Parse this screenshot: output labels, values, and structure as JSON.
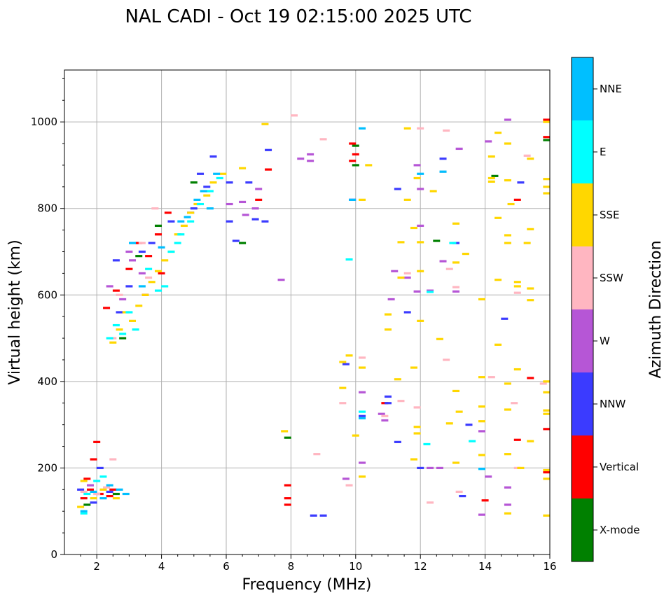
{
  "chart_data": {
    "type": "scatter",
    "title": "NAL CADI - Oct 19 02:15:00 2025 UTC",
    "xlabel": "Frequency (MHz)",
    "ylabel": "Virtual height (km)",
    "xlim": [
      1,
      16
    ],
    "ylim": [
      0,
      1120
    ],
    "xticks": [
      2,
      4,
      6,
      8,
      10,
      12,
      14,
      16
    ],
    "yticks": [
      0,
      200,
      400,
      600,
      800,
      1000
    ],
    "grid": true,
    "colorbar": {
      "label": "Azimuth Direction",
      "categories": [
        {
          "name": "X-mode",
          "color": "#008000"
        },
        {
          "name": "Vertical",
          "color": "#ff0000"
        },
        {
          "name": "NNW",
          "color": "#3b3bff"
        },
        {
          "name": "W",
          "color": "#b656d6"
        },
        {
          "name": "SSW",
          "color": "#ffb6c1"
        },
        {
          "name": "SSE",
          "color": "#ffd700"
        },
        {
          "name": "E",
          "color": "#00ffff"
        },
        {
          "name": "NNE",
          "color": "#00bfff"
        }
      ]
    },
    "series": [
      {
        "name": "X-mode",
        "points": [
          [
            1.7,
            115
          ],
          [
            2.6,
            140
          ],
          [
            3.3,
            690
          ],
          [
            3.9,
            760
          ],
          [
            6.5,
            720
          ],
          [
            7.9,
            270
          ],
          [
            10.0,
            900
          ],
          [
            10.0,
            945
          ],
          [
            12.5,
            725
          ],
          [
            15.9,
            958
          ],
          [
            2.8,
            500
          ],
          [
            5.0,
            860
          ],
          [
            14.3,
            875
          ]
        ]
      },
      {
        "name": "Vertical",
        "points": [
          [
            1.6,
            130
          ],
          [
            1.8,
            150
          ],
          [
            2.1,
            140
          ],
          [
            2.4,
            135
          ],
          [
            2.0,
            260
          ],
          [
            1.7,
            175
          ],
          [
            2.3,
            570
          ],
          [
            2.6,
            610
          ],
          [
            3.0,
            660
          ],
          [
            3.3,
            720
          ],
          [
            3.6,
            690
          ],
          [
            3.9,
            740
          ],
          [
            4.2,
            790
          ],
          [
            7.0,
            820
          ],
          [
            7.3,
            890
          ],
          [
            7.9,
            160
          ],
          [
            7.9,
            130
          ],
          [
            7.9,
            115
          ],
          [
            9.9,
            950
          ],
          [
            9.9,
            910
          ],
          [
            10.0,
            925
          ],
          [
            14.0,
            125
          ],
          [
            15.0,
            265
          ],
          [
            15.0,
            820
          ],
          [
            15.4,
            408
          ],
          [
            15.9,
            290
          ],
          [
            15.9,
            190
          ],
          [
            15.9,
            965
          ],
          [
            15.9,
            1005
          ],
          [
            10.9,
            350
          ],
          [
            2.5,
            150
          ],
          [
            1.9,
            220
          ],
          [
            3.5,
            600
          ],
          [
            4.0,
            650
          ]
        ]
      },
      {
        "name": "NNW",
        "points": [
          [
            1.5,
            150
          ],
          [
            1.9,
            120
          ],
          [
            2.4,
            145
          ],
          [
            2.7,
            560
          ],
          [
            3.0,
            620
          ],
          [
            3.4,
            700
          ],
          [
            3.7,
            720
          ],
          [
            4.3,
            770
          ],
          [
            5.0,
            800
          ],
          [
            5.4,
            850
          ],
          [
            5.6,
            920
          ],
          [
            6.1,
            860
          ],
          [
            6.1,
            770
          ],
          [
            6.3,
            725
          ],
          [
            6.7,
            860
          ],
          [
            6.9,
            775
          ],
          [
            7.2,
            770
          ],
          [
            7.3,
            935
          ],
          [
            8.7,
            90
          ],
          [
            9.0,
            90
          ],
          [
            9.7,
            440
          ],
          [
            9.9,
            820
          ],
          [
            10.2,
            320
          ],
          [
            11.0,
            365
          ],
          [
            11.0,
            350
          ],
          [
            11.3,
            260
          ],
          [
            11.3,
            845
          ],
          [
            11.6,
            560
          ],
          [
            12.0,
            200
          ],
          [
            12.7,
            915
          ],
          [
            13.1,
            720
          ],
          [
            13.3,
            135
          ],
          [
            13.5,
            300
          ],
          [
            14.6,
            545
          ],
          [
            15.1,
            860
          ],
          [
            2.1,
            200
          ],
          [
            2.6,
            680
          ],
          [
            4.9,
            790
          ],
          [
            5.2,
            880
          ]
        ]
      },
      {
        "name": "W",
        "points": [
          [
            1.8,
            160
          ],
          [
            2.8,
            590
          ],
          [
            3.1,
            680
          ],
          [
            3.4,
            650
          ],
          [
            6.1,
            810
          ],
          [
            6.5,
            815
          ],
          [
            6.6,
            785
          ],
          [
            6.9,
            800
          ],
          [
            7.0,
            845
          ],
          [
            8.3,
            915
          ],
          [
            8.6,
            925
          ],
          [
            8.6,
            910
          ],
          [
            10.2,
            375
          ],
          [
            10.2,
            212
          ],
          [
            10.8,
            325
          ],
          [
            10.9,
            310
          ],
          [
            11.1,
            590
          ],
          [
            11.2,
            655
          ],
          [
            11.6,
            640
          ],
          [
            11.9,
            900
          ],
          [
            11.9,
            608
          ],
          [
            12.0,
            760
          ],
          [
            12.0,
            845
          ],
          [
            12.3,
            200
          ],
          [
            12.3,
            610
          ],
          [
            12.6,
            200
          ],
          [
            12.7,
            678
          ],
          [
            13.1,
            608
          ],
          [
            13.2,
            938
          ],
          [
            13.9,
            285
          ],
          [
            13.9,
            92
          ],
          [
            14.1,
            180
          ],
          [
            14.1,
            955
          ],
          [
            14.7,
            155
          ],
          [
            14.7,
            115
          ],
          [
            14.7,
            1005
          ],
          [
            2.4,
            620
          ],
          [
            3.0,
            700
          ],
          [
            7.7,
            635
          ],
          [
            9.7,
            175
          ]
        ]
      },
      {
        "name": "SSW",
        "points": [
          [
            1.6,
            145
          ],
          [
            2.0,
            140
          ],
          [
            2.3,
            155
          ],
          [
            2.5,
            500
          ],
          [
            2.7,
            600
          ],
          [
            3.4,
            720
          ],
          [
            3.8,
            800
          ],
          [
            8.1,
            1015
          ],
          [
            8.8,
            232
          ],
          [
            9.6,
            350
          ],
          [
            9.8,
            160
          ],
          [
            10.2,
            455
          ],
          [
            10.9,
            320
          ],
          [
            11.4,
            355
          ],
          [
            11.6,
            650
          ],
          [
            11.9,
            340
          ],
          [
            12.0,
            985
          ],
          [
            12.3,
            120
          ],
          [
            12.7,
            885
          ],
          [
            12.8,
            980
          ],
          [
            12.8,
            450
          ],
          [
            12.9,
            660
          ],
          [
            13.1,
            618
          ],
          [
            13.2,
            145
          ],
          [
            14.2,
            410
          ],
          [
            14.9,
            350
          ],
          [
            15.0,
            200
          ],
          [
            15.0,
            605
          ],
          [
            15.3,
            922
          ],
          [
            15.8,
            395
          ],
          [
            2.5,
            220
          ],
          [
            3.6,
            640
          ],
          [
            9.0,
            960
          ]
        ]
      },
      {
        "name": "SSE",
        "points": [
          [
            1.5,
            110
          ],
          [
            1.6,
            170
          ],
          [
            1.9,
            130
          ],
          [
            2.2,
            150
          ],
          [
            2.6,
            130
          ],
          [
            2.5,
            490
          ],
          [
            2.7,
            520
          ],
          [
            2.9,
            560
          ],
          [
            3.1,
            540
          ],
          [
            3.3,
            575
          ],
          [
            3.5,
            600
          ],
          [
            3.7,
            630
          ],
          [
            3.9,
            655
          ],
          [
            4.1,
            680
          ],
          [
            4.3,
            700
          ],
          [
            4.5,
            740
          ],
          [
            4.7,
            760
          ],
          [
            4.9,
            790
          ],
          [
            5.1,
            810
          ],
          [
            5.4,
            830
          ],
          [
            5.6,
            860
          ],
          [
            5.9,
            880
          ],
          [
            6.5,
            893
          ],
          [
            7.2,
            995
          ],
          [
            7.8,
            285
          ],
          [
            9.6,
            385
          ],
          [
            9.6,
            445
          ],
          [
            9.8,
            460
          ],
          [
            10.0,
            275
          ],
          [
            10.2,
            180
          ],
          [
            10.2,
            432
          ],
          [
            10.2,
            820
          ],
          [
            10.4,
            900
          ],
          [
            11.0,
            520
          ],
          [
            11.0,
            555
          ],
          [
            11.3,
            405
          ],
          [
            11.4,
            640
          ],
          [
            11.4,
            722
          ],
          [
            11.6,
            820
          ],
          [
            11.6,
            985
          ],
          [
            11.8,
            220
          ],
          [
            11.8,
            432
          ],
          [
            11.8,
            755
          ],
          [
            11.9,
            280
          ],
          [
            11.9,
            295
          ],
          [
            11.9,
            870
          ],
          [
            12.0,
            540
          ],
          [
            12.0,
            655
          ],
          [
            12.0,
            722
          ],
          [
            12.4,
            840
          ],
          [
            12.6,
            498
          ],
          [
            12.9,
            303
          ],
          [
            13.1,
            212
          ],
          [
            13.1,
            378
          ],
          [
            13.1,
            675
          ],
          [
            13.1,
            765
          ],
          [
            13.2,
            330
          ],
          [
            13.4,
            695
          ],
          [
            13.9,
            230
          ],
          [
            13.9,
            590
          ],
          [
            13.9,
            410
          ],
          [
            13.9,
            342
          ],
          [
            13.9,
            308
          ],
          [
            14.2,
            920
          ],
          [
            14.2,
            870
          ],
          [
            14.2,
            862
          ],
          [
            14.4,
            485
          ],
          [
            14.4,
            635
          ],
          [
            14.4,
            778
          ],
          [
            14.4,
            975
          ],
          [
            14.7,
            95
          ],
          [
            14.7,
            232
          ],
          [
            14.7,
            335
          ],
          [
            14.7,
            395
          ],
          [
            14.7,
            720
          ],
          [
            14.7,
            738
          ],
          [
            14.7,
            865
          ],
          [
            14.7,
            950
          ],
          [
            14.8,
            810
          ],
          [
            15.0,
            428
          ],
          [
            15.0,
            620
          ],
          [
            15.0,
            630
          ],
          [
            15.1,
            200
          ],
          [
            15.3,
            720
          ],
          [
            15.4,
            262
          ],
          [
            15.4,
            588
          ],
          [
            15.4,
            615
          ],
          [
            15.4,
            752
          ],
          [
            15.4,
            915
          ],
          [
            15.9,
            90
          ],
          [
            15.9,
            175
          ],
          [
            15.9,
            195
          ],
          [
            15.9,
            325
          ],
          [
            15.9,
            333
          ],
          [
            15.9,
            375
          ],
          [
            15.9,
            400
          ],
          [
            15.9,
            835
          ],
          [
            15.9,
            850
          ],
          [
            15.9,
            868
          ],
          [
            15.9,
            1000
          ]
        ]
      },
      {
        "name": "E",
        "points": [
          [
            1.6,
            95
          ],
          [
            1.7,
            140
          ],
          [
            2.0,
            170
          ],
          [
            2.4,
            500
          ],
          [
            2.6,
            530
          ],
          [
            2.8,
            510
          ],
          [
            3.0,
            560
          ],
          [
            3.6,
            660
          ],
          [
            3.9,
            610
          ],
          [
            4.1,
            620
          ],
          [
            4.3,
            700
          ],
          [
            4.6,
            740
          ],
          [
            4.9,
            770
          ],
          [
            5.2,
            810
          ],
          [
            5.5,
            840
          ],
          [
            5.8,
            870
          ],
          [
            9.8,
            682
          ],
          [
            10.2,
            330
          ],
          [
            12.2,
            255
          ],
          [
            12.3,
            607
          ],
          [
            13.0,
            720
          ],
          [
            13.6,
            262
          ],
          [
            13.9,
            198
          ],
          [
            2.2,
            180
          ],
          [
            3.2,
            520
          ],
          [
            4.5,
            720
          ]
        ]
      },
      {
        "name": "NNE",
        "points": [
          [
            1.6,
            100
          ],
          [
            1.9,
            145
          ],
          [
            2.2,
            130
          ],
          [
            2.7,
            150
          ],
          [
            2.9,
            140
          ],
          [
            3.1,
            720
          ],
          [
            3.4,
            620
          ],
          [
            4.0,
            710
          ],
          [
            4.6,
            770
          ],
          [
            5.1,
            820
          ],
          [
            5.3,
            840
          ],
          [
            5.5,
            800
          ],
          [
            5.7,
            880
          ],
          [
            9.9,
            820
          ],
          [
            10.2,
            985
          ],
          [
            10.2,
            315
          ],
          [
            12.0,
            880
          ],
          [
            12.7,
            885
          ],
          [
            13.9,
            198
          ],
          [
            2.4,
            160
          ],
          [
            4.8,
            780
          ]
        ]
      }
    ]
  }
}
